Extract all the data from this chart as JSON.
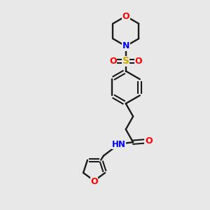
{
  "bg_color": "#e8e8e8",
  "bond_color": "#1a1a1a",
  "colors": {
    "O": "#ff0000",
    "N": "#0000ff",
    "S": "#ccaa00",
    "C": "#1a1a1a",
    "H": "#4a4a4a"
  },
  "figsize": [
    3.0,
    3.0
  ],
  "dpi": 100
}
